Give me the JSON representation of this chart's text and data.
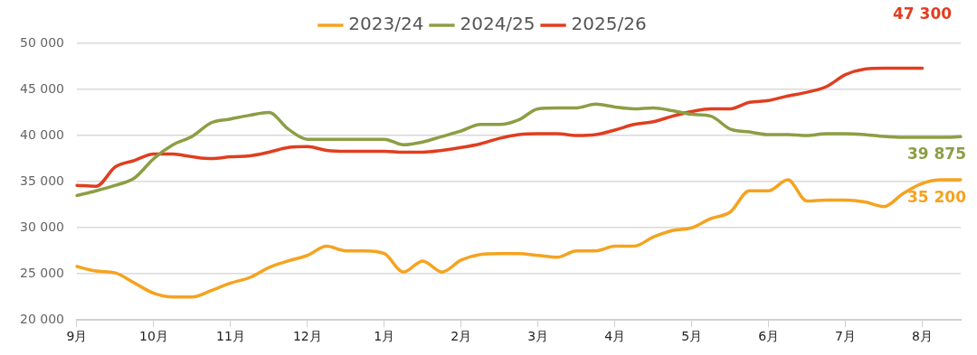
{
  "chart_data": {
    "type": "line",
    "categories": [
      "9月",
      null,
      null,
      null,
      "10月",
      null,
      null,
      null,
      "11月",
      null,
      null,
      null,
      "12月",
      null,
      null,
      null,
      "1月",
      null,
      null,
      null,
      "2月",
      null,
      null,
      null,
      "3月",
      null,
      null,
      null,
      "4月",
      null,
      null,
      null,
      "5月",
      null,
      null,
      null,
      "6月",
      null,
      null,
      null,
      "7月",
      null,
      null,
      null,
      "8月",
      null,
      null
    ],
    "ylim": [
      20000,
      50000
    ],
    "yticks": [
      {
        "value": 20000,
        "label": "20 000"
      },
      {
        "value": 25000,
        "label": "25 000"
      },
      {
        "value": 30000,
        "label": "30 000"
      },
      {
        "value": 35000,
        "label": "35 000"
      },
      {
        "value": 40000,
        "label": "40 000"
      },
      {
        "value": 45000,
        "label": "45 000"
      },
      {
        "value": 50000,
        "label": "50 000"
      }
    ],
    "grid": "y",
    "legend": "top",
    "marker": "none",
    "line_style": "solid",
    "series": [
      {
        "name": "2023/24",
        "color": "#f5a31f",
        "values": [
          25800,
          25300,
          25100,
          24000,
          22900,
          22500,
          22500,
          23200,
          24000,
          24600,
          25700,
          26400,
          27000,
          28000,
          27500,
          27500,
          27200,
          25200,
          26400,
          25200,
          26500,
          27100,
          27200,
          27200,
          27000,
          26800,
          27500,
          27500,
          28000,
          28000,
          29000,
          29700,
          30000,
          31000,
          31700,
          34000,
          34000,
          35200,
          32900,
          33000,
          33000,
          32800,
          32300,
          33700,
          34800,
          35200,
          35200
        ],
        "value_labels": [
          null,
          null,
          null,
          null,
          null,
          null,
          null,
          null,
          null,
          null,
          null,
          null,
          null,
          null,
          null,
          null,
          null,
          null,
          null,
          null,
          null,
          null,
          null,
          null,
          null,
          null,
          null,
          null,
          null,
          null,
          null,
          null,
          null,
          null,
          null,
          null,
          null,
          null,
          null,
          null,
          null,
          null,
          null,
          null,
          null,
          null,
          "35 200"
        ]
      },
      {
        "name": "2024/25",
        "color": "#8c9e44",
        "values": [
          33500,
          34000,
          34600,
          35400,
          37500,
          39000,
          39900,
          41400,
          41800,
          42200,
          42500,
          40700,
          39600,
          39600,
          39600,
          39600,
          39600,
          39000,
          39300,
          39900,
          40500,
          41200,
          41200,
          41700,
          42900,
          43000,
          43000,
          43400,
          43100,
          42900,
          43000,
          42700,
          42300,
          42100,
          40700,
          40400,
          40100,
          40100,
          40000,
          40200,
          40200,
          40100,
          39900,
          39800,
          39800,
          39800,
          39875
        ],
        "value_labels": [
          null,
          null,
          null,
          null,
          null,
          null,
          null,
          null,
          null,
          null,
          null,
          null,
          null,
          null,
          null,
          null,
          null,
          null,
          null,
          null,
          null,
          null,
          null,
          null,
          null,
          null,
          null,
          null,
          null,
          null,
          null,
          null,
          null,
          null,
          null,
          null,
          null,
          null,
          null,
          null,
          null,
          null,
          null,
          null,
          null,
          null,
          "39 875"
        ]
      },
      {
        "name": "2025/26",
        "color": "#e03e1f",
        "values": [
          34600,
          34500,
          36600,
          37300,
          38000,
          38000,
          37700,
          37500,
          37700,
          37800,
          38200,
          38700,
          38800,
          38400,
          38300,
          38300,
          38300,
          38200,
          38200,
          38400,
          38700,
          39100,
          39700,
          40100,
          40200,
          40200,
          40000,
          40100,
          40600,
          41200,
          41500,
          42100,
          42600,
          42900,
          42900,
          43600,
          43800,
          44300,
          44700,
          45300,
          46600,
          47200,
          47300,
          47300,
          47300,
          null,
          null
        ],
        "value_labels": [
          null,
          null,
          null,
          null,
          null,
          null,
          null,
          null,
          null,
          null,
          null,
          null,
          null,
          null,
          null,
          null,
          null,
          null,
          null,
          null,
          null,
          null,
          null,
          null,
          null,
          null,
          null,
          null,
          null,
          null,
          null,
          null,
          null,
          null,
          null,
          null,
          null,
          null,
          null,
          null,
          null,
          null,
          null,
          null,
          "47 300",
          null,
          null
        ]
      }
    ]
  }
}
